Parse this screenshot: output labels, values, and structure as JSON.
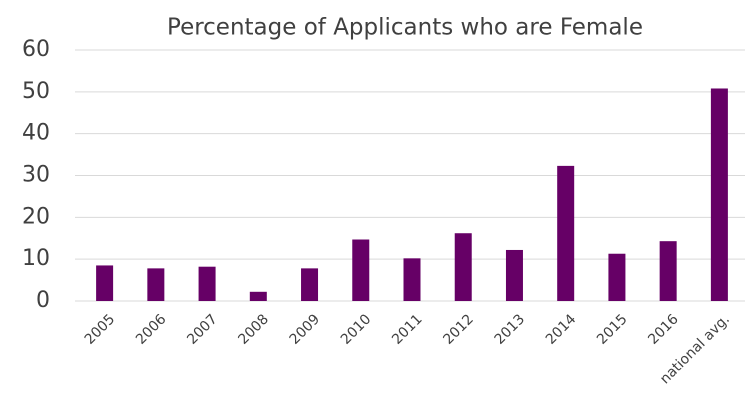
{
  "chart_data": {
    "type": "bar",
    "title": "Percentage of Applicants who are Female",
    "categories": [
      "2005",
      "2006",
      "2007",
      "2008",
      "2009",
      "2010",
      "2011",
      "2012",
      "2013",
      "2014",
      "2015",
      "2016",
      "national avg."
    ],
    "values": [
      8.5,
      7.8,
      8.2,
      2.2,
      7.8,
      14.7,
      10.2,
      16.2,
      12.2,
      32.3,
      11.3,
      14.3,
      50.8
    ],
    "color": "#660066",
    "ylim": [
      0,
      60
    ],
    "yticks": [
      0,
      10,
      20,
      30,
      40,
      50,
      60
    ],
    "grid": true
  }
}
